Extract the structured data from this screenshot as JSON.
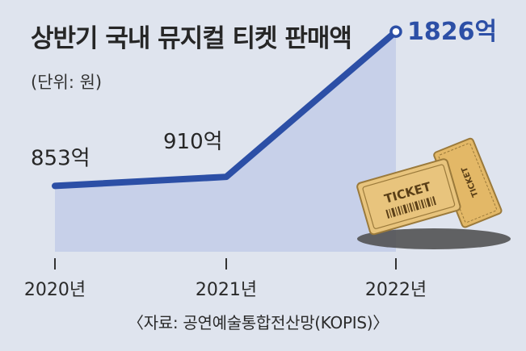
{
  "header": {
    "title": "상반기 국내 뮤지컬 티켓 판매액",
    "unit": "(단위: 원)"
  },
  "footer": {
    "source": "〈자료: 공연예술통합전산망(KOPIS)〉"
  },
  "ticket_illustration": {
    "main_text": "TICKET",
    "stub_text": "TICKET"
  },
  "colors": {
    "background": "#dfe4ee",
    "line": "#2c4fa6",
    "area": "#c3cde8",
    "ticket": "#e8c47d",
    "ticket_border": "#9b7a3b"
  },
  "chart_data": {
    "type": "area",
    "title": "상반기 국내 뮤지컬 티켓 판매액",
    "ylabel": "(단위: 원)",
    "xlabel": "",
    "categories": [
      "2020년",
      "2021년",
      "2022년"
    ],
    "values": [
      853,
      910,
      1826
    ],
    "data_labels": [
      "853억",
      "910억",
      "1826억"
    ],
    "ylim": [
      0,
      2000
    ],
    "grid": false,
    "legend": "none"
  }
}
